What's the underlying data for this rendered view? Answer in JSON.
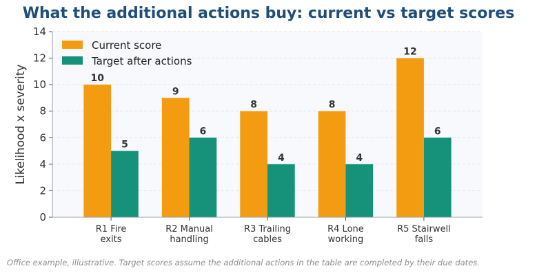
{
  "chart_data": {
    "type": "bar",
    "title": "What the additional actions buy: current vs target scores",
    "ylabel": "Likelihood x severity",
    "xlabel": "",
    "ylim": [
      0,
      14
    ],
    "yticks": [
      0,
      2,
      4,
      6,
      8,
      10,
      12,
      14
    ],
    "grid": "horizontal dashed",
    "legend_position": "top-left",
    "categories": [
      [
        "R1 Fire",
        "exits"
      ],
      [
        "R2 Manual",
        "handling"
      ],
      [
        "R3 Trailing",
        "cables"
      ],
      [
        "R4 Lone",
        "working"
      ],
      [
        "R5 Stairwell",
        "falls"
      ]
    ],
    "series": [
      {
        "name": "Current score",
        "color": "#f39c12",
        "values": [
          10,
          9,
          8,
          8,
          12
        ]
      },
      {
        "name": "Target after actions",
        "color": "#16917a",
        "values": [
          5,
          6,
          4,
          4,
          6
        ]
      }
    ]
  },
  "footnote": "Office example, illustrative. Target scores assume the additional actions in the table are completed by their due dates."
}
